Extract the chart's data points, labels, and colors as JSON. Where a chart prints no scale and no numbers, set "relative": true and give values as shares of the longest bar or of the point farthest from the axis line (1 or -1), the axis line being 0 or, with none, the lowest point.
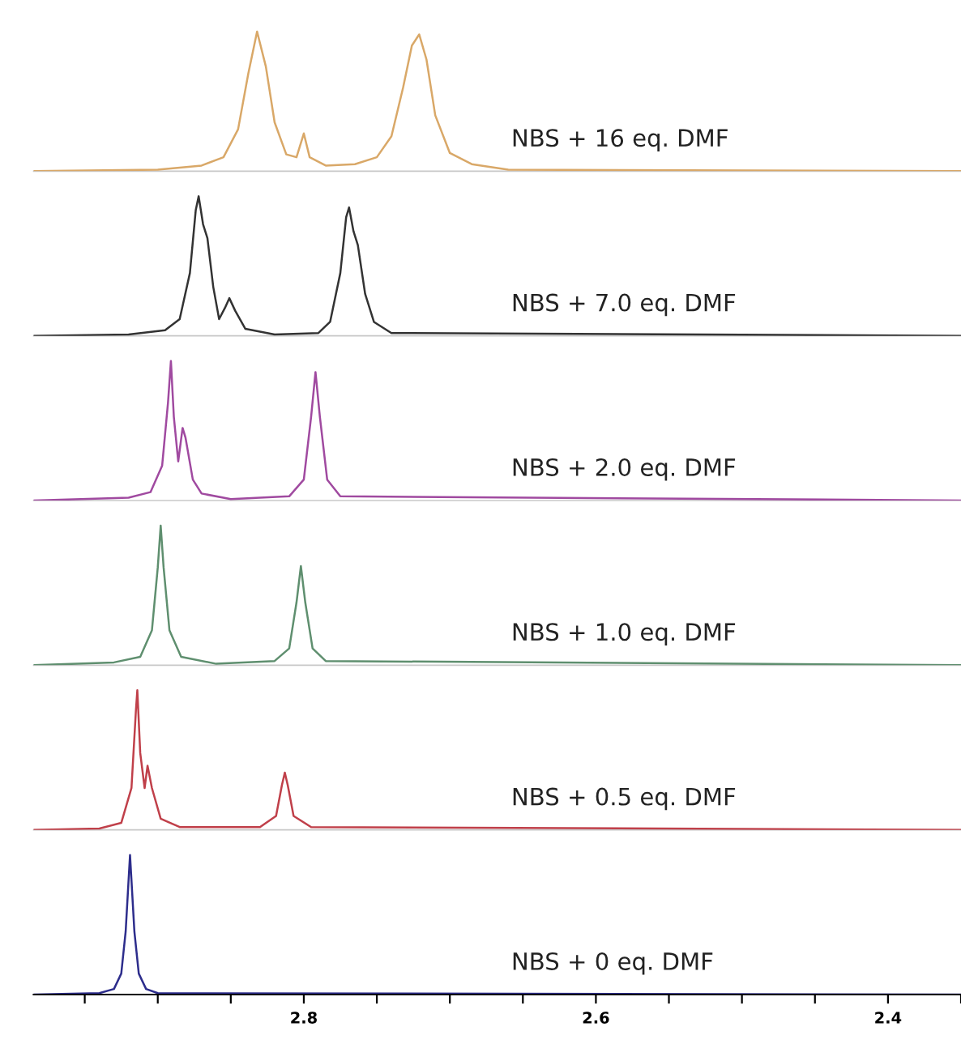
{
  "chart_data": [
    {
      "type": "line",
      "relative": true,
      "tick_labels": false,
      "xlim": [
        2.985,
        2.35
      ],
      "series": [
        {
          "name": "NBS + 16 eq. DMF",
          "color": "#d9a868",
          "x": [
            2.985,
            2.9,
            2.87,
            2.855,
            2.845,
            2.838,
            2.832,
            2.826,
            2.82,
            2.812,
            2.805,
            2.8,
            2.796,
            2.785,
            2.765,
            2.75,
            2.74,
            2.732,
            2.726,
            2.721,
            2.716,
            2.71,
            2.7,
            2.685,
            2.66,
            2.35
          ],
          "values": [
            0,
            0.01,
            0.04,
            0.1,
            0.3,
            0.7,
            1,
            0.75,
            0.35,
            0.12,
            0.1,
            0.27,
            0.1,
            0.04,
            0.05,
            0.1,
            0.25,
            0.6,
            0.9,
            0.98,
            0.8,
            0.4,
            0.13,
            0.05,
            0.01,
            0
          ]
        }
      ]
    },
    {
      "type": "line",
      "relative": true,
      "tick_labels": false,
      "xlim": [
        2.985,
        2.35
      ],
      "series": [
        {
          "name": "NBS + 7.0 eq. DMF",
          "color": "#333333",
          "x": [
            2.985,
            2.92,
            2.895,
            2.885,
            2.878,
            2.874,
            2.872,
            2.869,
            2.866,
            2.862,
            2.858,
            2.854,
            2.851,
            2.847,
            2.84,
            2.82,
            2.79,
            2.782,
            2.775,
            2.771,
            2.769,
            2.766,
            2.763,
            2.758,
            2.752,
            2.74,
            2.35
          ],
          "values": [
            0,
            0.01,
            0.04,
            0.12,
            0.45,
            0.9,
            1,
            0.8,
            0.7,
            0.35,
            0.12,
            0.2,
            0.27,
            0.18,
            0.05,
            0.01,
            0.02,
            0.1,
            0.45,
            0.85,
            0.92,
            0.75,
            0.65,
            0.3,
            0.1,
            0.02,
            0
          ]
        }
      ]
    },
    {
      "type": "line",
      "relative": true,
      "tick_labels": false,
      "xlim": [
        2.985,
        2.35
      ],
      "series": [
        {
          "name": "NBS + 2.0 eq. DMF",
          "color": "#a04aa0",
          "x": [
            2.985,
            2.92,
            2.905,
            2.897,
            2.893,
            2.891,
            2.889,
            2.886,
            2.883,
            2.881,
            2.876,
            2.87,
            2.85,
            2.81,
            2.8,
            2.795,
            2.792,
            2.789,
            2.784,
            2.775,
            2.35
          ],
          "values": [
            0,
            0.02,
            0.06,
            0.25,
            0.7,
            1,
            0.6,
            0.28,
            0.52,
            0.45,
            0.15,
            0.05,
            0.01,
            0.03,
            0.15,
            0.6,
            0.92,
            0.6,
            0.15,
            0.03,
            0
          ]
        }
      ]
    },
    {
      "type": "line",
      "relative": true,
      "tick_labels": false,
      "xlim": [
        2.985,
        2.35
      ],
      "series": [
        {
          "name": "NBS + 1.0 eq. DMF",
          "color": "#5f8f6f",
          "x": [
            2.985,
            2.93,
            2.912,
            2.904,
            2.9,
            2.898,
            2.896,
            2.892,
            2.884,
            2.86,
            2.82,
            2.81,
            2.805,
            2.802,
            2.799,
            2.794,
            2.785,
            2.35
          ],
          "values": [
            0,
            0.02,
            0.06,
            0.25,
            0.7,
            1,
            0.7,
            0.25,
            0.06,
            0.01,
            0.03,
            0.12,
            0.45,
            0.71,
            0.45,
            0.12,
            0.03,
            0
          ]
        }
      ]
    },
    {
      "type": "line",
      "relative": true,
      "tick_labels": false,
      "xlim": [
        2.985,
        2.35
      ],
      "series": [
        {
          "name": "NBS + 0.5 eq. DMF",
          "color": "#c0404a",
          "x": [
            2.985,
            2.94,
            2.925,
            2.918,
            2.915,
            2.914,
            2.912,
            2.909,
            2.907,
            2.904,
            2.898,
            2.885,
            2.83,
            2.819,
            2.815,
            2.813,
            2.811,
            2.807,
            2.795,
            2.35
          ],
          "values": [
            0,
            0.01,
            0.05,
            0.3,
            0.85,
            1,
            0.55,
            0.3,
            0.46,
            0.3,
            0.08,
            0.02,
            0.02,
            0.1,
            0.32,
            0.41,
            0.32,
            0.1,
            0.02,
            0
          ]
        }
      ]
    },
    {
      "type": "line",
      "relative": true,
      "tick_labels": "x",
      "xlim": [
        2.985,
        2.35
      ],
      "xticks": [
        {
          "value": 2.95,
          "label": null
        },
        {
          "value": 2.9,
          "label": null
        },
        {
          "value": 2.85,
          "label": null
        },
        2.8,
        {
          "value": 2.75,
          "label": null
        },
        {
          "value": 2.7,
          "label": null
        },
        {
          "value": 2.65,
          "label": null
        },
        2.6,
        {
          "value": 2.55,
          "label": null
        },
        {
          "value": 2.5,
          "label": null
        },
        {
          "value": 2.45,
          "label": null
        },
        2.4,
        {
          "value": 2.35,
          "label": null
        }
      ],
      "series": [
        {
          "name": "NBS + 0 eq. DMF",
          "color": "#2d2d8c",
          "x": [
            2.985,
            2.94,
            2.93,
            2.925,
            2.922,
            2.919,
            2.916,
            2.913,
            2.908,
            2.9,
            2.35
          ],
          "values": [
            0,
            0.01,
            0.04,
            0.15,
            0.45,
            1,
            0.45,
            0.15,
            0.04,
            0.01,
            0
          ]
        }
      ]
    }
  ]
}
